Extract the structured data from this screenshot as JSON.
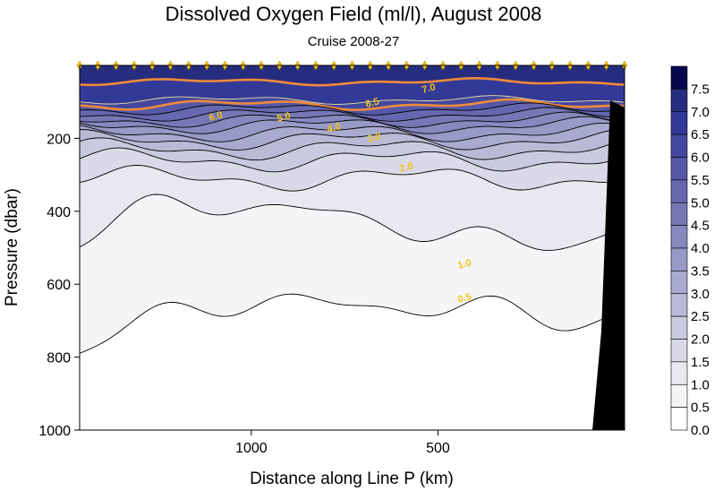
{
  "chart_data": {
    "type": "heatmap",
    "title": "Dissolved Oxygen Field  (ml/l),  August 2008",
    "subtitle": "Cruise 2008-27",
    "xlabel": "Distance along Line P  (km)",
    "ylabel": "Pressure  (dbar)",
    "x_axis": {
      "ticks": [
        1000,
        500
      ],
      "reversed": true,
      "xlim": [
        1460,
        0
      ]
    },
    "y_axis": {
      "ticks": [
        200,
        400,
        600,
        800,
        1000
      ],
      "ylim": [
        0,
        1000
      ],
      "reversed": true
    },
    "colorbar": {
      "ticks": [
        7.5,
        7.0,
        6.5,
        6.0,
        5.5,
        5.0,
        4.5,
        4.0,
        3.5,
        3.0,
        2.5,
        2.0,
        1.5,
        1.0,
        0.5,
        0.0
      ],
      "colors": [
        "#06064f",
        "#272d7e",
        "#333996",
        "#4247a0",
        "#5558a8",
        "#6567af",
        "#7678b6",
        "#8689be",
        "#9799c6",
        "#a8aace",
        "#b9bad6",
        "#c9cadf",
        "#d9d9e7",
        "#e8e8f0",
        "#f5f5f8",
        "#ffffff"
      ]
    },
    "contour_labels": [
      "7.0",
      "6.5",
      "6.0",
      "5.0",
      "4.0",
      "3.0",
      "2.0",
      "1.0",
      "0.5"
    ],
    "contour_depths": [
      {
        "level": 7.0,
        "depth_dbar": 45
      },
      {
        "level": 6.5,
        "depth_dbar": 95
      },
      {
        "level": 6.0,
        "depth_dbar": 108
      },
      {
        "level": 5.5,
        "depth_dbar": 120
      },
      {
        "level": 5.0,
        "depth_dbar": 135
      },
      {
        "level": 4.5,
        "depth_dbar": 150
      },
      {
        "level": 4.0,
        "depth_dbar": 165
      },
      {
        "level": 3.5,
        "depth_dbar": 185
      },
      {
        "level": 3.0,
        "depth_dbar": 205
      },
      {
        "level": 2.5,
        "depth_dbar": 230
      },
      {
        "level": 2.0,
        "depth_dbar": 260
      },
      {
        "level": 1.5,
        "depth_dbar": 310
      },
      {
        "level": 1.0,
        "depth_dbar": 430
      },
      {
        "level": 0.5,
        "depth_dbar": 680
      }
    ],
    "station_markers": 31
  }
}
